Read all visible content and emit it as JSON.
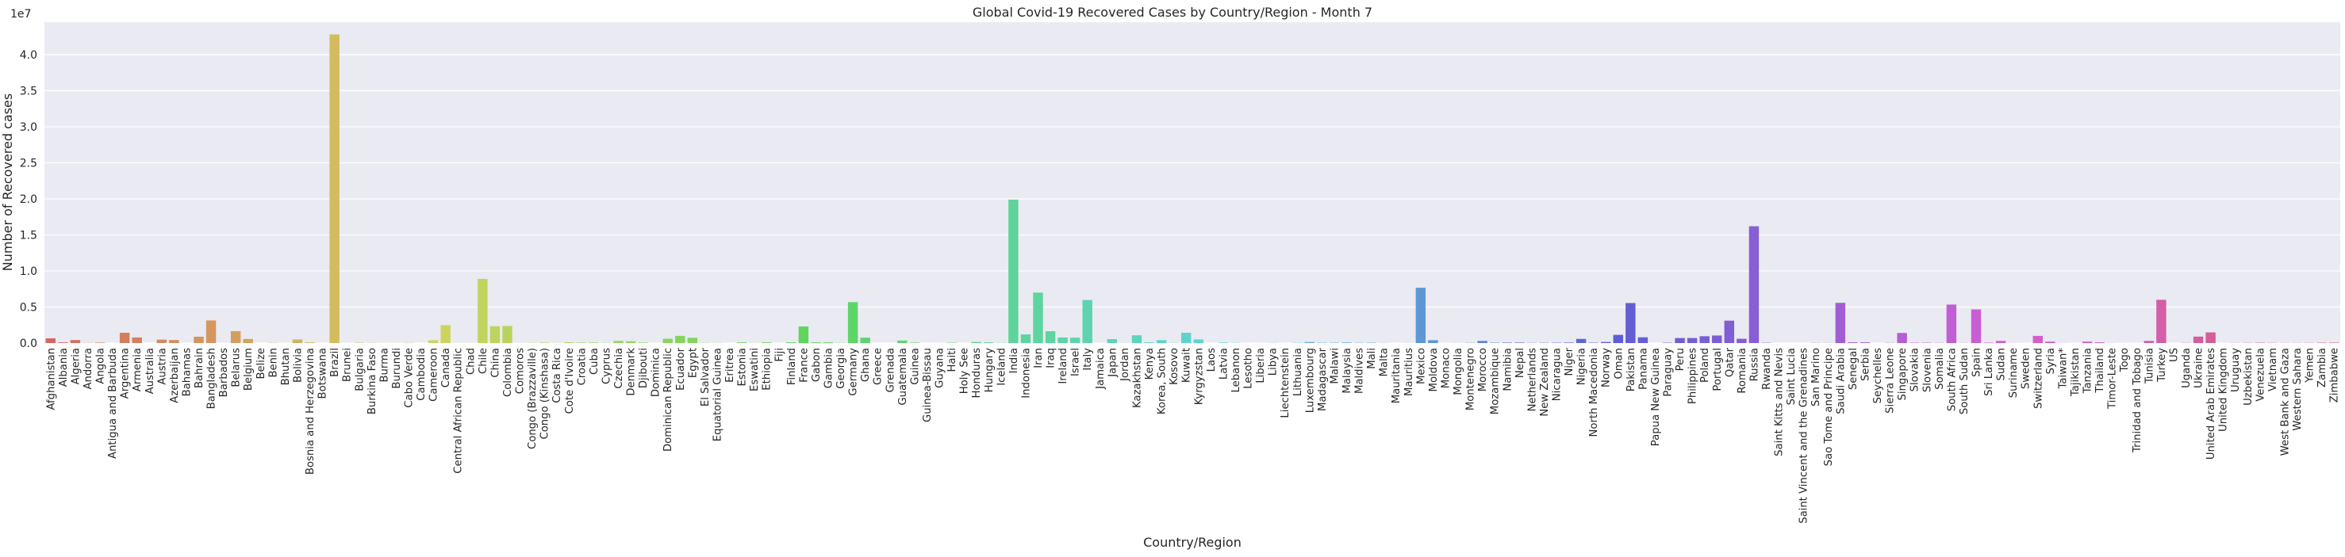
{
  "chart_data": {
    "type": "bar",
    "title": "Global Covid-19 Recovered Cases by Country/Region - Month 7",
    "xlabel": "Country/Region",
    "ylabel": "Number of Recovered cases",
    "y_offset_label": "1e7",
    "ylim": [
      0,
      44500000
    ],
    "yticks": [
      0,
      5000000,
      10000000,
      15000000,
      20000000,
      25000000,
      30000000,
      35000000,
      40000000
    ],
    "ytick_labels": [
      "0.0",
      "0.5",
      "1.0",
      "1.5",
      "2.0",
      "2.5",
      "3.0",
      "3.5",
      "4.0"
    ],
    "grid": true,
    "background": "#eaeaf2",
    "categories": [
      "Afghanistan",
      "Albania",
      "Algeria",
      "Andorra",
      "Angola",
      "Antigua and Barbuda",
      "Argentina",
      "Armenia",
      "Australia",
      "Austria",
      "Azerbaijan",
      "Bahamas",
      "Bahrain",
      "Bangladesh",
      "Barbados",
      "Belarus",
      "Belgium",
      "Belize",
      "Benin",
      "Bhutan",
      "Bolivia",
      "Bosnia and Herzegovina",
      "Botswana",
      "Brazil",
      "Brunei",
      "Bulgaria",
      "Burkina Faso",
      "Burma",
      "Burundi",
      "Cabo Verde",
      "Cambodia",
      "Cameroon",
      "Canada",
      "Central African Republic",
      "Chad",
      "Chile",
      "China",
      "Colombia",
      "Comoros",
      "Congo (Brazzaville)",
      "Congo (Kinshasa)",
      "Costa Rica",
      "Cote d'Ivoire",
      "Croatia",
      "Cuba",
      "Cyprus",
      "Czechia",
      "Denmark",
      "Djibouti",
      "Dominica",
      "Dominican Republic",
      "Ecuador",
      "Egypt",
      "El Salvador",
      "Equatorial Guinea",
      "Eritrea",
      "Estonia",
      "Eswatini",
      "Ethiopia",
      "Fiji",
      "Finland",
      "France",
      "Gabon",
      "Gambia",
      "Georgia",
      "Germany",
      "Ghana",
      "Greece",
      "Grenada",
      "Guatemala",
      "Guinea",
      "Guinea-Bissau",
      "Guyana",
      "Haiti",
      "Holy See",
      "Honduras",
      "Hungary",
      "Iceland",
      "India",
      "Indonesia",
      "Iran",
      "Iraq",
      "Ireland",
      "Israel",
      "Italy",
      "Jamaica",
      "Japan",
      "Jordan",
      "Kazakhstan",
      "Kenya",
      "Korea, South",
      "Kosovo",
      "Kuwait",
      "Kyrgyzstan",
      "Laos",
      "Latvia",
      "Lebanon",
      "Lesotho",
      "Liberia",
      "Libya",
      "Liechtenstein",
      "Lithuania",
      "Luxembourg",
      "Madagascar",
      "Malawi",
      "Malaysia",
      "Maldives",
      "Mali",
      "Malta",
      "Mauritania",
      "Mauritius",
      "Mexico",
      "Moldova",
      "Monaco",
      "Mongolia",
      "Montenegro",
      "Morocco",
      "Mozambique",
      "Namibia",
      "Nepal",
      "Netherlands",
      "New Zealand",
      "Nicaragua",
      "Niger",
      "Nigeria",
      "North Macedonia",
      "Norway",
      "Oman",
      "Pakistan",
      "Panama",
      "Papua New Guinea",
      "Paraguay",
      "Peru",
      "Philippines",
      "Poland",
      "Portugal",
      "Qatar",
      "Romania",
      "Russia",
      "Rwanda",
      "Saint Kitts and Nevis",
      "Saint Lucia",
      "Saint Vincent and the Grenadines",
      "San Marino",
      "Sao Tome and Principe",
      "Saudi Arabia",
      "Senegal",
      "Serbia",
      "Seychelles",
      "Sierra Leone",
      "Singapore",
      "Slovakia",
      "Slovenia",
      "Somalia",
      "South Africa",
      "South Sudan",
      "Spain",
      "Sri Lanka",
      "Sudan",
      "Suriname",
      "Sweden",
      "Switzerland",
      "Syria",
      "Taiwan*",
      "Tajikistan",
      "Tanzania",
      "Thailand",
      "Timor-Leste",
      "Togo",
      "Trinidad and Tobago",
      "Tunisia",
      "Turkey",
      "US",
      "Uganda",
      "Ukraine",
      "United Arab Emirates",
      "United Kingdom",
      "Uruguay",
      "Uzbekistan",
      "Venezuela",
      "Vietnam",
      "West Bank and Gaza",
      "Western Sahara",
      "Yemen",
      "Zambia",
      "Zimbabwe"
    ],
    "values": [
      660000,
      100000,
      420000,
      22000,
      60000,
      300,
      1430000,
      780000,
      0,
      480000,
      420000,
      1000,
      880000,
      3140000,
      3000,
      1650000,
      570000,
      1000,
      30000,
      2000,
      500000,
      100000,
      1000,
      42800000,
      4000,
      50000,
      30000,
      10000,
      8000,
      40000,
      1000,
      400000,
      2480000,
      20000,
      20000,
      8900000,
      2340000,
      2380000,
      10000,
      30000,
      70000,
      20000,
      100000,
      70000,
      80000,
      30000,
      300000,
      250000,
      70000,
      300,
      600000,
      1000000,
      730000,
      30000,
      20000,
      1000,
      100000,
      20000,
      100000,
      2000,
      100000,
      2300000,
      100000,
      100000,
      30000,
      5680000,
      750000,
      0,
      300,
      350000,
      70000,
      1000,
      2000,
      50000,
      0,
      150000,
      100000,
      30000,
      19900000,
      1200000,
      7000000,
      1650000,
      770000,
      750000,
      5970000,
      4000,
      550000,
      20000,
      1080000,
      100000,
      400000,
      30000,
      1430000,
      500000,
      1000,
      70000,
      30000,
      1000,
      2000,
      20000,
      2000,
      30000,
      150000,
      50000,
      50000,
      80000,
      40000,
      50000,
      20000,
      0,
      10000,
      7670000,
      400000,
      3000,
      10000,
      30000,
      300000,
      50000,
      70000,
      70000,
      30000,
      40000,
      50000,
      70000,
      580000,
      50000,
      150000,
      1140000,
      5550000,
      800000,
      1000,
      50000,
      700000,
      700000,
      950000,
      1050000,
      3110000,
      600000,
      16200000,
      40000,
      300,
      300,
      300,
      20000,
      20000,
      5580000,
      100000,
      100000,
      300,
      30000,
      1400000,
      50000,
      50000,
      30000,
      5340000,
      20000,
      4670000,
      60000,
      300000,
      10000,
      2000,
      1000000,
      200000,
      10000,
      2000,
      200000,
      100000,
      10000,
      2000,
      0,
      300000,
      6000000,
      0,
      30000,
      900000,
      1480000,
      0,
      20000,
      30000,
      50000,
      30000,
      20000,
      20000,
      30000,
      50000,
      60000
    ]
  }
}
